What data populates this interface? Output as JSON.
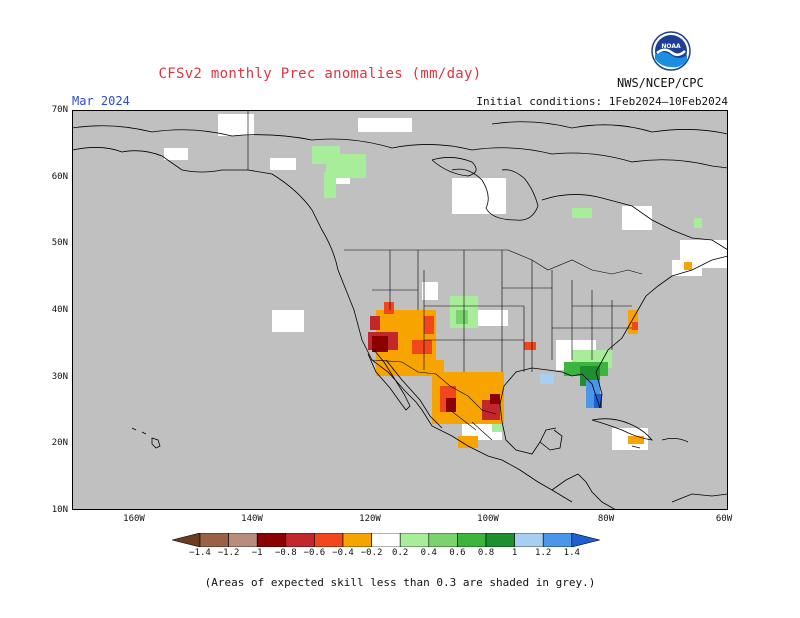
{
  "header": {
    "title": "CFSv2 monthly Prec anomalies (mm/day)",
    "month": "Mar 2024",
    "initial_conditions": "Initial conditions: 1Feb2024–10Feb2024",
    "agency": "NWS/NCEP/CPC",
    "logo_text": "NOAA"
  },
  "map": {
    "lat_labels": [
      "70N",
      "60N",
      "50N",
      "40N",
      "30N",
      "20N",
      "10N"
    ],
    "lon_labels": [
      "160W",
      "140W",
      "120W",
      "100W",
      "80W",
      "60W"
    ],
    "colors": {
      "skill_mask": "#c0c0c0",
      "ocean_land": "#ffffff",
      "coast": "#000000"
    }
  },
  "colorbar": {
    "labels": [
      "−1.4",
      "−1.2",
      "−1",
      "−0.8",
      "−0.6",
      "−0.4",
      "−0.2",
      "0.2",
      "0.4",
      "0.6",
      "0.8",
      "1",
      "1.2",
      "1.4"
    ],
    "colors": [
      "#6b3a24",
      "#9a6147",
      "#b98d7d",
      "#8b0000",
      "#c1272d",
      "#f0471c",
      "#f7a400",
      "#ffffff",
      "#a8ee9a",
      "#7bd36d",
      "#3bb53d",
      "#1e8f2e",
      "#a8cff2",
      "#4a96e8",
      "#1f5fd1"
    ]
  },
  "footer": {
    "note": "(Areas of expected skill less than 0.3 are shaded in grey.)"
  }
}
